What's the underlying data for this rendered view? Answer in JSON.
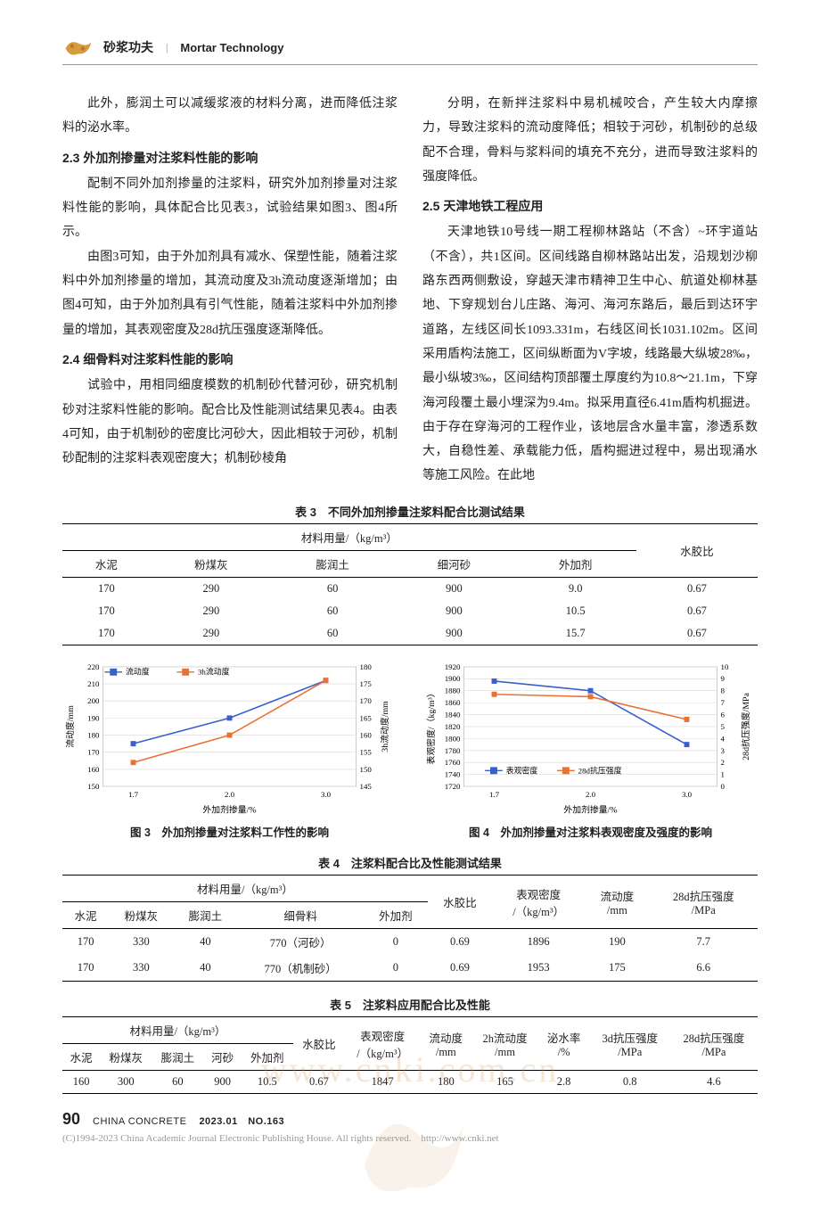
{
  "header": {
    "cn": "砂浆功夫",
    "en": "Mortar Technology"
  },
  "watermark": "www.cnki.com.cn",
  "left_col": {
    "p1": "此外，膨润土可以减缓浆液的材料分离，进而降低注浆料的泌水率。",
    "h23": "2.3 外加剂掺量对注浆料性能的影响",
    "p2": "配制不同外加剂掺量的注浆料，研究外加剂掺量对注浆料性能的影响，具体配合比见表3，试验结果如图3、图4所示。",
    "p3": "由图3可知，由于外加剂具有减水、保塑性能，随着注浆料中外加剂掺量的增加，其流动度及3h流动度逐渐增加；由图4可知，由于外加剂具有引气性能，随着注浆料中外加剂掺量的增加，其表观密度及28d抗压强度逐渐降低。",
    "h24": "2.4 细骨料对注浆料性能的影响",
    "p4": "试验中，用相同细度模数的机制砂代替河砂，研究机制砂对注浆料性能的影响。配合比及性能测试结果见表4。由表4可知，由于机制砂的密度比河砂大，因此相较于河砂，机制砂配制的注浆料表观密度大；机制砂棱角"
  },
  "right_col": {
    "p5": "分明，在新拌注浆料中易机械咬合，产生较大内摩擦力，导致注浆料的流动度降低；相较于河砂，机制砂的总级配不合理，骨料与浆料间的填充不充分，进而导致注浆料的强度降低。",
    "h25": "2.5 天津地铁工程应用",
    "p6": "天津地铁10号线一期工程柳林路站（不含）~环宇道站（不含），共1区间。区间线路自柳林路站出发，沿规划沙柳路东西两侧敷设，穿越天津市精神卫生中心、航道处柳林基地、下穿规划台儿庄路、海河、海河东路后，最后到达环宇道路，左线区间长1093.331m，右线区间长1031.102m。区间采用盾构法施工，区间纵断面为V字坡，线路最大纵坡28‰，最小纵坡3‰，区间结构顶部覆土厚度约为10.8～21.1m，下穿海河段覆土最小埋深为9.4m。拟采用直径6.41m盾构机掘进。由于存在穿海河的工程作业，该地层含水量丰富，渗透系数大，自稳性差、承载能力低，盾构掘进过程中，易出现涌水等施工风险。在此地"
  },
  "table3": {
    "caption": "表 3　不同外加剂掺量注浆料配合比测试结果",
    "group_header": "材料用量/（kg/m³）",
    "headers": [
      "水泥",
      "粉煤灰",
      "膨润土",
      "细河砂",
      "外加剂",
      "水胶比"
    ],
    "rows": [
      [
        "170",
        "290",
        "60",
        "900",
        "9.0",
        "0.67"
      ],
      [
        "170",
        "290",
        "60",
        "900",
        "10.5",
        "0.67"
      ],
      [
        "170",
        "290",
        "60",
        "900",
        "15.7",
        "0.67"
      ]
    ]
  },
  "chart3": {
    "type": "line",
    "caption": "图 3　外加剂掺量对注浆料工作性的影响",
    "x_label": "外加剂掺量/%",
    "x_ticks": [
      "1.7",
      "2.0",
      "3.0"
    ],
    "y1_label": "流动度/mm",
    "y1_ticks": [
      150,
      160,
      170,
      180,
      190,
      200,
      210,
      220
    ],
    "y2_label": "3h流动度/mm",
    "y2_ticks": [
      145,
      150,
      155,
      160,
      165,
      170,
      175,
      180
    ],
    "series": [
      {
        "name": "流动度",
        "color": "#3a5fcd",
        "marker": "square",
        "y": [
          175,
          190,
          212
        ]
      },
      {
        "name": "3h流动度",
        "color": "#e97132",
        "marker": "square",
        "y": [
          152,
          160,
          176
        ]
      }
    ],
    "grid_color": "#d9d9d9",
    "bg": "#ffffff"
  },
  "chart4": {
    "type": "line",
    "caption": "图 4　外加剂掺量对注浆料表观密度及强度的影响",
    "x_label": "外加剂掺量/%",
    "x_ticks": [
      "1.7",
      "2.0",
      "3.0"
    ],
    "y1_label": "表观密度/（kg/m³）",
    "y1_ticks": [
      1720,
      1740,
      1760,
      1780,
      1800,
      1820,
      1840,
      1860,
      1880,
      1900,
      1920
    ],
    "y2_label": "28d抗压强度/MPa",
    "y2_ticks": [
      0,
      1,
      2,
      3,
      4,
      5,
      6,
      7,
      8,
      9,
      10
    ],
    "series": [
      {
        "name": "表观密度",
        "color": "#3a5fcd",
        "marker": "square",
        "y": [
          1896,
          1880,
          1790
        ]
      },
      {
        "name": "28d抗压强度",
        "color": "#e97132",
        "marker": "square",
        "y": [
          7.7,
          7.5,
          5.6
        ]
      }
    ],
    "grid_color": "#d9d9d9",
    "bg": "#ffffff"
  },
  "table4": {
    "caption": "表 4　注浆料配合比及性能测试结果",
    "group_header": "材料用量/（kg/m³）",
    "headers_group": [
      "水泥",
      "粉煤灰",
      "膨润土",
      "细骨料",
      "外加剂"
    ],
    "headers_tail": [
      "水胶比",
      "表观密度\n/（kg/m³）",
      "流动度\n/mm",
      "28d抗压强度\n/MPa"
    ],
    "rows": [
      [
        "170",
        "330",
        "40",
        "770（河砂）",
        "0",
        "0.69",
        "1896",
        "190",
        "7.7"
      ],
      [
        "170",
        "330",
        "40",
        "770（机制砂）",
        "0",
        "0.69",
        "1953",
        "175",
        "6.6"
      ]
    ]
  },
  "table5": {
    "caption": "表 5　注浆料应用配合比及性能",
    "group_header": "材料用量/（kg/m³）",
    "headers_group": [
      "水泥",
      "粉煤灰",
      "膨润土",
      "河砂",
      "外加剂"
    ],
    "headers_tail": [
      "水胶比",
      "表观密度\n/（kg/m³）",
      "流动度\n/mm",
      "2h流动度\n/mm",
      "泌水率\n/%",
      "3d抗压强度\n/MPa",
      "28d抗压强度\n/MPa"
    ],
    "rows": [
      [
        "160",
        "300",
        "60",
        "900",
        "10.5",
        "0.67",
        "1847",
        "180",
        "165",
        "2.8",
        "0.8",
        "4.6"
      ]
    ]
  },
  "footer": {
    "page": "90",
    "mag": "CHINA CONCRETE",
    "issue": "2023.01　NO.163",
    "copyright": "(C)1994-2023 China Academic Journal Electronic Publishing House. All rights reserved.　http://www.cnki.net"
  }
}
